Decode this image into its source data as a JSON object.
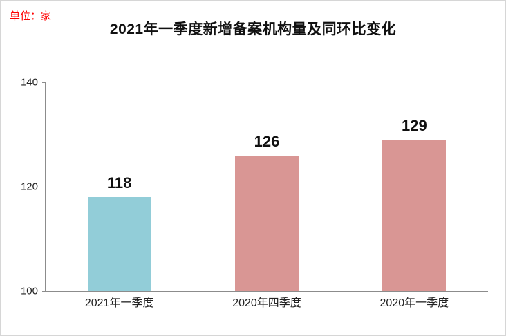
{
  "unit_label": "单位：家",
  "title": "2021年一季度新增备案机构量及同环比变化",
  "chart_data": {
    "type": "bar",
    "title": "2021年一季度新增备案机构量及同环比变化",
    "unit": "单位：家",
    "categories": [
      "2021年一季度",
      "2020年四季度",
      "2020年一季度"
    ],
    "values": [
      118,
      126,
      129
    ],
    "bar_colors": [
      "#92cdd8",
      "#d99694",
      "#d99694"
    ],
    "xlabel": "",
    "ylabel": "",
    "ylim": [
      100,
      140
    ],
    "yticks": [
      100,
      120,
      140
    ],
    "grid": false,
    "legend": "none"
  },
  "colors": {
    "unit_label_text": "#ff0000",
    "title_text": "#111111",
    "axis_line": "#8c8c8c",
    "background": "#ffffff",
    "frame_border": "#d6d6d6"
  }
}
